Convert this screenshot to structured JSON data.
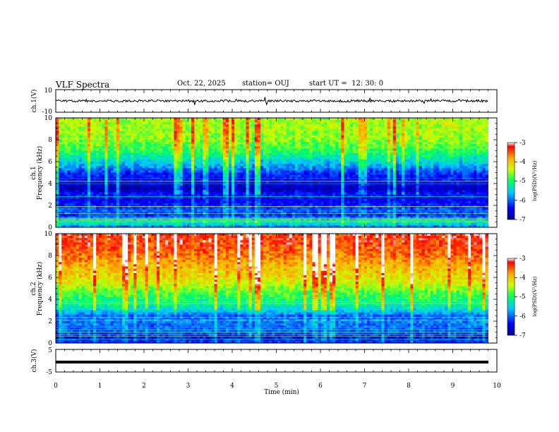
{
  "header": {
    "title": "VLF Spectra",
    "date": "Oct. 22, 2025",
    "station": "station= OUJ",
    "start_prefix": "start  UT  =",
    "start_time": "12: 30: 0"
  },
  "chart_data": [
    {
      "type": "line",
      "panel": "ch1-waveform",
      "ylabel": "ch.1(V)",
      "ylim": [
        -10,
        10
      ],
      "yticks": [
        "10",
        "-10"
      ],
      "xlim": [
        0,
        10
      ],
      "signal_level": 0,
      "color": "#000000"
    },
    {
      "type": "heatmap",
      "panel": "ch1-spectrogram",
      "ylabel_channel": "ch.1",
      "ylabel": "Frequency  (kHz)",
      "ylim": [
        0,
        10
      ],
      "yticks": [
        "0",
        "2",
        "4",
        "6",
        "8",
        "10"
      ],
      "xlim": [
        0,
        10
      ],
      "data_end_min": 9.8,
      "colorbar": {
        "label": "log(PSD)(V²/Hz)",
        "ticks": [
          "-3",
          "-4",
          "-5",
          "-6",
          "-7"
        ],
        "range": [
          -7,
          -3
        ]
      },
      "frequency_profile_khz": [
        [
          0,
          -6.0
        ],
        [
          0.5,
          -5.2
        ],
        [
          1.0,
          -6.2
        ],
        [
          1.5,
          -6.0
        ],
        [
          2.0,
          -6.3
        ],
        [
          2.5,
          -6.5
        ],
        [
          3.0,
          -6.3
        ],
        [
          3.5,
          -6.8
        ],
        [
          4.0,
          -6.6
        ],
        [
          4.5,
          -6.4
        ],
        [
          5.0,
          -6.2
        ],
        [
          5.5,
          -5.8
        ],
        [
          6.0,
          -5.5
        ],
        [
          6.5,
          -5.2
        ],
        [
          7.0,
          -4.9
        ],
        [
          8.0,
          -4.6
        ],
        [
          9.0,
          -4.5
        ],
        [
          10.0,
          -4.5
        ]
      ]
    },
    {
      "type": "heatmap",
      "panel": "ch2-spectrogram",
      "ylabel_channel": "ch.2",
      "ylabel": "Frequency  (kHz)",
      "ylim": [
        0,
        10
      ],
      "yticks": [
        "0",
        "2",
        "4",
        "6",
        "8",
        "10"
      ],
      "xlim": [
        0,
        10
      ],
      "data_end_min": 9.8,
      "colorbar": {
        "label": "log(PSD)(V²/Hz)",
        "ticks": [
          "-3",
          "-4",
          "-5",
          "-6",
          "-7"
        ],
        "range": [
          -7,
          -3
        ]
      },
      "frequency_profile_khz": [
        [
          0,
          -6.2
        ],
        [
          0.5,
          -6.3
        ],
        [
          1.0,
          -6.1
        ],
        [
          1.5,
          -6.0
        ],
        [
          2.0,
          -5.9
        ],
        [
          2.5,
          -6.0
        ],
        [
          3.0,
          -5.5
        ],
        [
          3.5,
          -5.2
        ],
        [
          4.0,
          -5.0
        ],
        [
          4.5,
          -4.8
        ],
        [
          5.0,
          -4.6
        ],
        [
          5.5,
          -4.3
        ],
        [
          6.0,
          -4.1
        ],
        [
          7.0,
          -3.9
        ],
        [
          8.0,
          -3.6
        ],
        [
          9.0,
          -3.4
        ],
        [
          10.0,
          -3.3
        ]
      ]
    },
    {
      "type": "line",
      "panel": "ch3-waveform",
      "ylabel": "ch.3(V)",
      "ylim": [
        -5,
        5
      ],
      "yticks": [
        "5",
        "0",
        "-5"
      ],
      "xlim": [
        0,
        10
      ],
      "signal_level": -0.6,
      "color": "#000000"
    }
  ],
  "x_axis": {
    "label": "Time  (min)",
    "ticks": [
      "0",
      "1",
      "2",
      "3",
      "4",
      "5",
      "6",
      "7",
      "8",
      "9",
      "10"
    ]
  }
}
